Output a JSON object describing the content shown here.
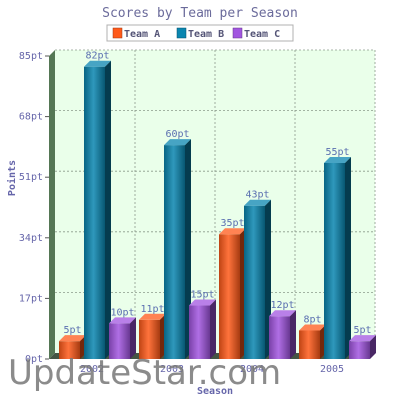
{
  "chart_data": {
    "type": "bar",
    "title": "Scores by Team per Season",
    "xlabel": "Season",
    "ylabel": "Points",
    "categories": [
      "2002",
      "2003",
      "2004",
      "2005"
    ],
    "ylim": [
      0,
      85
    ],
    "yticks": [
      "0pt",
      "17pt",
      "34pt",
      "51pt",
      "68pt",
      "85pt"
    ],
    "ytick_values": [
      0,
      17,
      34,
      51,
      68,
      85
    ],
    "grid": true,
    "legend_position": "top",
    "series": [
      {
        "name": "Team A",
        "values": [
          5,
          11,
          35,
          8
        ],
        "labels": [
          "5pt",
          "11pt",
          "35pt",
          "8pt"
        ],
        "color": "#ff5a1a"
      },
      {
        "name": "Team B",
        "values": [
          82,
          60,
          43,
          55
        ],
        "labels": [
          "82pt",
          "60pt",
          "43pt",
          "55pt"
        ],
        "color": "#0a86b0"
      },
      {
        "name": "Team C",
        "values": [
          10,
          15,
          12,
          5
        ],
        "labels": [
          "10pt",
          "15pt",
          "12pt",
          "5pt"
        ],
        "color": "#a256e0"
      }
    ]
  },
  "watermark": "UpdateStar.com"
}
